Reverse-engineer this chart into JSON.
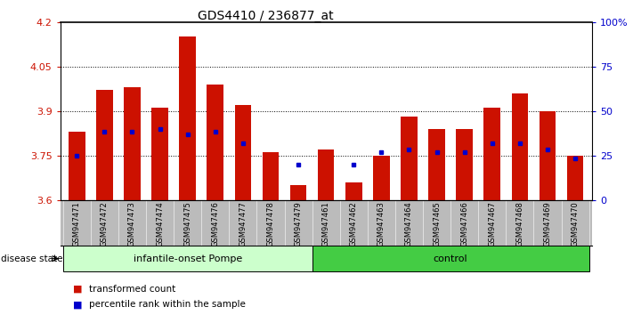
{
  "title": "GDS4410 / 236877_at",
  "samples": [
    "GSM947471",
    "GSM947472",
    "GSM947473",
    "GSM947474",
    "GSM947475",
    "GSM947476",
    "GSM947477",
    "GSM947478",
    "GSM947479",
    "GSM947461",
    "GSM947462",
    "GSM947463",
    "GSM947464",
    "GSM947465",
    "GSM947466",
    "GSM947467",
    "GSM947468",
    "GSM947469",
    "GSM947470"
  ],
  "bar_values": [
    3.83,
    3.97,
    3.98,
    3.91,
    4.15,
    3.99,
    3.92,
    3.76,
    3.65,
    3.77,
    3.66,
    3.75,
    3.88,
    3.84,
    3.84,
    3.91,
    3.96,
    3.9,
    3.75
  ],
  "blue_dot_values": [
    3.75,
    3.83,
    3.83,
    3.84,
    3.82,
    3.83,
    3.79,
    null,
    3.72,
    null,
    3.72,
    3.76,
    3.77,
    3.76,
    3.76,
    3.79,
    3.79,
    3.77,
    3.74
  ],
  "ymin": 3.6,
  "ymax": 4.2,
  "yticks": [
    3.6,
    3.75,
    3.9,
    4.05,
    4.2
  ],
  "ytick_labels": [
    "3.6",
    "3.75",
    "3.9",
    "4.05",
    "4.2"
  ],
  "right_yticks": [
    0,
    25,
    50,
    75,
    100
  ],
  "right_ytick_labels": [
    "0",
    "25",
    "50",
    "75",
    "100%"
  ],
  "bar_color": "#cc1100",
  "dot_color": "#0000cc",
  "bar_width": 0.6,
  "group1_label": "infantile-onset Pompe",
  "group2_label": "control",
  "group1_indices": [
    0,
    1,
    2,
    3,
    4,
    5,
    6,
    7,
    8
  ],
  "group2_indices": [
    9,
    10,
    11,
    12,
    13,
    14,
    15,
    16,
    17,
    18
  ],
  "disease_state_label": "disease state",
  "legend_bar_label": "transformed count",
  "legend_dot_label": "percentile rank within the sample",
  "group1_bg": "#ccffcc",
  "group2_bg": "#44cc44",
  "tick_area_bg": "#bbbbbb",
  "axis_label_color_left": "#cc1100",
  "axis_label_color_right": "#0000cc"
}
